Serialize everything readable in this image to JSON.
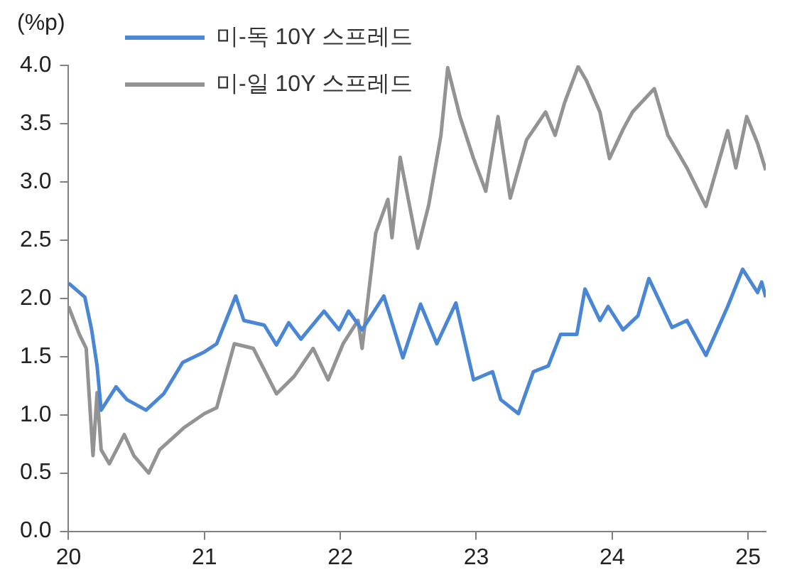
{
  "chart_data": {
    "type": "line",
    "ylabel": "(%p)",
    "legend": "top",
    "grid": false,
    "marker": "none",
    "line_style": "solid",
    "xlim": [
      20,
      25.13
    ],
    "xticks": [
      20,
      21,
      22,
      23,
      24,
      25
    ],
    "ylim": [
      0,
      4
    ],
    "yticks": [
      {
        "value": 0,
        "label": "0.0"
      },
      0.5,
      {
        "value": 1,
        "label": "1.0"
      },
      1.5,
      {
        "value": 2,
        "label": "2.0"
      },
      2.5,
      {
        "value": 3,
        "label": "3.0"
      },
      3.5,
      {
        "value": 4,
        "label": "4.0"
      }
    ],
    "series": [
      {
        "name": "미-독 10Y 스프레드",
        "color": "#4a86d6",
        "x": [
          20.0,
          20.12,
          20.17,
          20.21,
          20.24,
          20.35,
          20.43,
          20.57,
          20.7,
          20.84,
          21.0,
          21.09,
          21.23,
          21.29,
          21.44,
          21.53,
          21.62,
          21.71,
          21.88,
          21.99,
          22.06,
          22.16,
          22.32,
          22.46,
          22.59,
          22.71,
          22.85,
          22.98,
          23.12,
          23.18,
          23.31,
          23.42,
          23.53,
          23.62,
          23.74,
          23.8,
          23.91,
          23.97,
          24.08,
          24.19,
          24.27,
          24.44,
          24.55,
          24.69,
          24.85,
          24.96,
          25.07,
          25.1,
          25.13
        ],
        "values": [
          2.13,
          2.01,
          1.73,
          1.42,
          1.04,
          1.24,
          1.13,
          1.04,
          1.18,
          1.45,
          1.54,
          1.61,
          2.02,
          1.81,
          1.77,
          1.6,
          1.79,
          1.65,
          1.89,
          1.73,
          1.89,
          1.73,
          2.02,
          1.49,
          1.95,
          1.61,
          1.96,
          1.3,
          1.37,
          1.13,
          1.01,
          1.37,
          1.42,
          1.69,
          1.69,
          2.08,
          1.81,
          1.93,
          1.73,
          1.85,
          2.17,
          1.75,
          1.81,
          1.51,
          1.93,
          2.25,
          2.05,
          2.14,
          2.01
        ]
      },
      {
        "name": "미-일 10Y 스프레드",
        "color": "#939393",
        "x": [
          20.0,
          20.08,
          20.13,
          20.18,
          20.21,
          20.24,
          20.3,
          20.41,
          20.48,
          20.59,
          20.67,
          20.85,
          21.0,
          21.09,
          21.22,
          21.36,
          21.53,
          21.66,
          21.8,
          21.91,
          22.02,
          22.13,
          22.16,
          22.26,
          22.35,
          22.38,
          22.44,
          22.57,
          22.65,
          22.74,
          22.79,
          22.88,
          22.98,
          23.07,
          23.16,
          23.25,
          23.37,
          23.51,
          23.58,
          23.65,
          23.75,
          23.81,
          23.91,
          23.98,
          24.08,
          24.15,
          24.31,
          24.41,
          24.55,
          24.69,
          24.85,
          24.91,
          24.99,
          25.07,
          25.13
        ],
        "values": [
          1.93,
          1.69,
          1.57,
          0.65,
          1.19,
          0.7,
          0.58,
          0.83,
          0.65,
          0.5,
          0.7,
          0.89,
          1.01,
          1.06,
          1.61,
          1.57,
          1.18,
          1.33,
          1.57,
          1.3,
          1.61,
          1.81,
          1.57,
          2.56,
          2.85,
          2.52,
          3.21,
          2.43,
          2.8,
          3.4,
          3.98,
          3.56,
          3.2,
          2.92,
          3.56,
          2.86,
          3.36,
          3.6,
          3.4,
          3.68,
          3.99,
          3.87,
          3.6,
          3.2,
          3.45,
          3.6,
          3.8,
          3.4,
          3.12,
          2.79,
          3.44,
          3.12,
          3.56,
          3.33,
          3.1
        ]
      }
    ]
  }
}
